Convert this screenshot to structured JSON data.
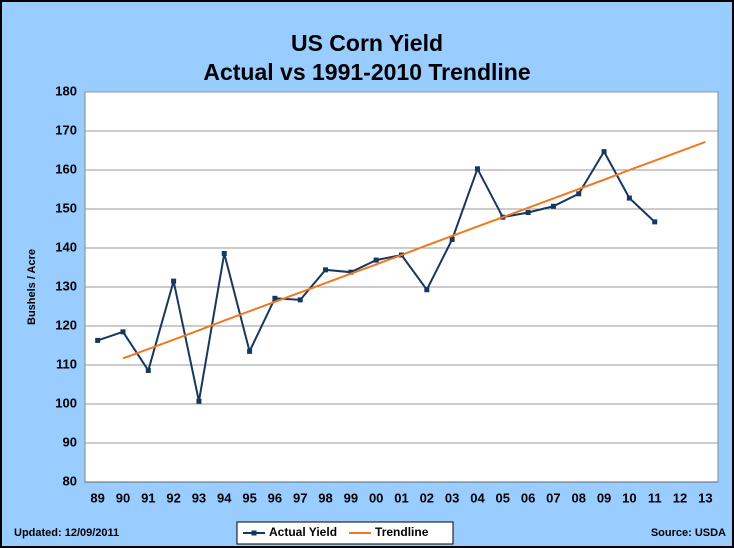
{
  "chart_data": {
    "type": "line",
    "title": "US Corn Yield",
    "subtitle": "Actual vs 1991-2010 Trendline",
    "y_label": "Bushels / Acre",
    "updated": "Updated: 12/09/2011",
    "source": "Source: USDA",
    "categories": [
      "89",
      "90",
      "91",
      "92",
      "93",
      "94",
      "95",
      "96",
      "97",
      "98",
      "99",
      "00",
      "01",
      "02",
      "03",
      "04",
      "05",
      "06",
      "07",
      "08",
      "09",
      "10",
      "11",
      "12",
      "13"
    ],
    "series": [
      {
        "name": "Actual Yield",
        "color": "#17375e",
        "marker": "square",
        "values": [
          116.3,
          118.5,
          108.6,
          131.5,
          100.7,
          138.6,
          113.5,
          127.1,
          126.7,
          134.4,
          133.8,
          136.9,
          138.2,
          129.3,
          142.2,
          160.3,
          147.9,
          149.1,
          150.7,
          153.9,
          164.7,
          152.8,
          146.7,
          null,
          null
        ]
      },
      {
        "name": "Trendline",
        "color": "#f07820",
        "values": [
          null,
          111.7,
          114.1,
          116.5,
          118.9,
          121.4,
          123.8,
          126.2,
          128.6,
          131.0,
          133.4,
          135.8,
          138.2,
          140.7,
          143.1,
          145.5,
          147.9,
          150.3,
          152.7,
          155.1,
          157.5,
          160.0,
          162.4,
          164.8,
          167.2
        ]
      }
    ],
    "ylim": [
      80,
      180
    ],
    "yticks": [
      80,
      90,
      100,
      110,
      120,
      130,
      140,
      150,
      160,
      170,
      180
    ],
    "grid": true,
    "legend": "bottom"
  }
}
